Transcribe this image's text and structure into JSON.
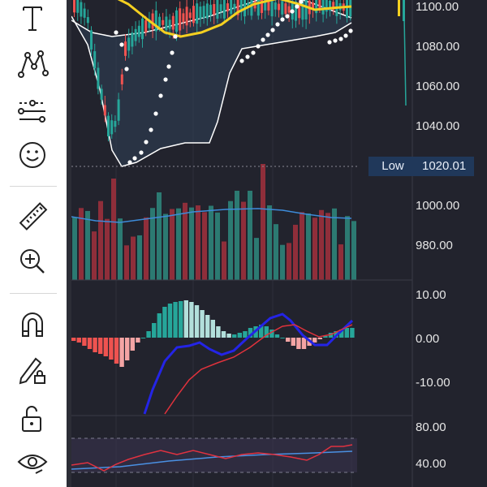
{
  "toolbar": {
    "tools": [
      {
        "name": "text-tool",
        "icon": "text-icon"
      },
      {
        "name": "pattern-tool",
        "icon": "pattern-icon"
      },
      {
        "name": "prediction-tool",
        "icon": "prediction-icon"
      },
      {
        "name": "emoji-tool",
        "icon": "smiley-icon"
      },
      {
        "name": "measure-tool",
        "icon": "ruler-icon"
      },
      {
        "name": "zoom-tool",
        "icon": "zoom-in-icon"
      },
      {
        "name": "magnet-mode",
        "icon": "magnet-icon"
      },
      {
        "name": "lock-drawings",
        "icon": "pencil-lock-icon"
      },
      {
        "name": "lock-all",
        "icon": "unlock-icon"
      },
      {
        "name": "hide-drawings",
        "icon": "eye-icon"
      }
    ]
  },
  "price_axis": {
    "labels": [
      "1100.00",
      "1080.00",
      "1060.00",
      "1040.00",
      "1000.00",
      "980.00"
    ],
    "low_tag": {
      "label": "Low",
      "value": "1020.01"
    }
  },
  "macd_axis": {
    "labels": [
      "10.00",
      "0.00",
      "-10.00"
    ]
  },
  "rsi_axis": {
    "labels": [
      "80.00",
      "40.00"
    ]
  },
  "colors": {
    "up": "#26a69a",
    "down": "#ef5350",
    "macd": "#2424e6",
    "signal": "#e0323c",
    "bollinger": "#ffffff",
    "ma": "#f5d020",
    "volume_ma": "#3d8bd9",
    "rsi": "#e03240",
    "rsi_ma": "#4a90e2"
  }
}
